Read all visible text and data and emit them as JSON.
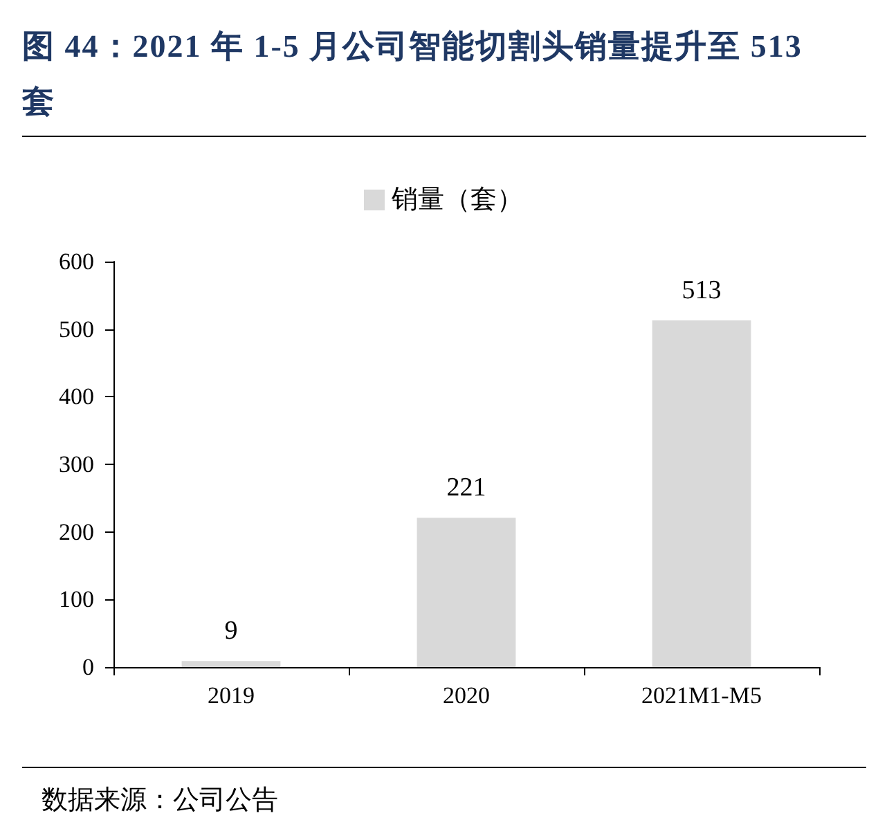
{
  "chart_data": {
    "type": "bar",
    "title": "图 44：2021 年 1-5 月公司智能切割头销量提升至 513 套",
    "categories": [
      "2019",
      "2020",
      "2021M1-M5"
    ],
    "series": [
      {
        "name": "销量（套）",
        "color": "#d9d9d9",
        "values": [
          9,
          221,
          513
        ]
      }
    ],
    "ylim": [
      0,
      600
    ],
    "yticks": [
      0,
      100,
      200,
      300,
      400,
      500,
      600
    ],
    "data_labels": true,
    "legend": "top",
    "annotations": [
      "数据来源：公司公告"
    ]
  }
}
